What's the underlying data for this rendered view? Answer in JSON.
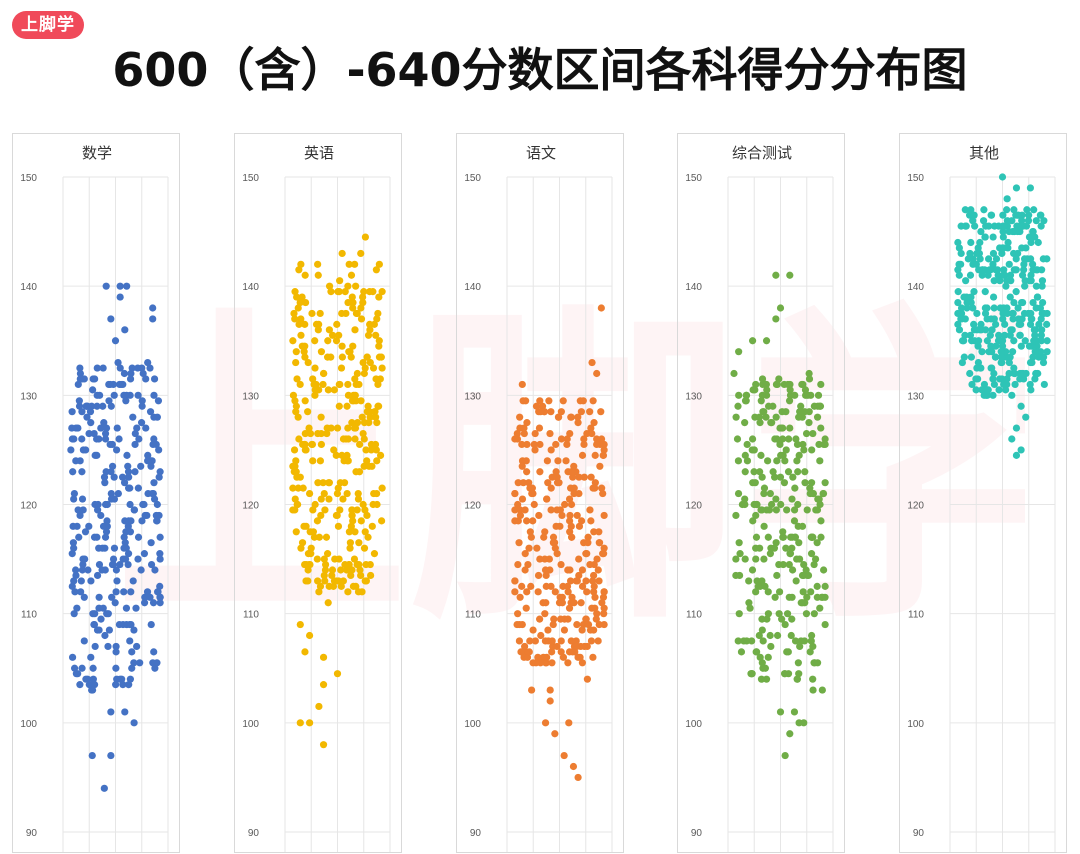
{
  "brand": {
    "badge_text": "上脚学",
    "watermark_text": "上脚学",
    "badge_color": "#f04a5a"
  },
  "title": "600（含）-640分数区间各科得分分布图",
  "chart_data": [
    {
      "type": "scatter",
      "title": "数学",
      "color": "#4472c4",
      "ylim": [
        90,
        150
      ],
      "yticks": [
        90,
        100,
        110,
        120,
        130,
        140,
        150
      ],
      "grid": true,
      "xlabel": "",
      "ylabel": "",
      "seed": 11,
      "distribution_center": 118,
      "points": [
        [
          0.4,
          140
        ],
        [
          0.55,
          140
        ],
        [
          0.62,
          140
        ],
        [
          0.45,
          137
        ],
        [
          0.9,
          138
        ],
        [
          0.9,
          137
        ],
        [
          0.5,
          135
        ],
        [
          0.6,
          136
        ],
        [
          0.1,
          131
        ],
        [
          0.2,
          129
        ],
        [
          0.55,
          139
        ],
        [
          0.2,
          104
        ],
        [
          0.25,
          97
        ],
        [
          0.45,
          97
        ],
        [
          0.38,
          94
        ],
        [
          0.45,
          101
        ],
        [
          0.6,
          101
        ],
        [
          0.7,
          100
        ],
        [
          0.95,
          128
        ],
        [
          0.05,
          116
        ],
        [
          0.95,
          120
        ]
      ],
      "dense_band": [
        103,
        133
      ],
      "dense_count": 300
    },
    {
      "type": "scatter",
      "title": "英语",
      "color": "#f2b800",
      "ylim": [
        90,
        150
      ],
      "yticks": [
        90,
        100,
        110,
        120,
        130,
        140,
        150
      ],
      "grid": true,
      "xlabel": "",
      "ylabel": "",
      "seed": 23,
      "distribution_center": 130,
      "points": [
        [
          0.8,
          144.5
        ],
        [
          0.75,
          143
        ],
        [
          0.55,
          143
        ],
        [
          0.95,
          142
        ],
        [
          0.35,
          132
        ],
        [
          0.2,
          121
        ],
        [
          0.1,
          109
        ],
        [
          0.2,
          108
        ],
        [
          0.35,
          106
        ],
        [
          0.15,
          106.5
        ],
        [
          0.35,
          103.5
        ],
        [
          0.3,
          101.5
        ],
        [
          0.1,
          100
        ],
        [
          0.2,
          100
        ],
        [
          0.35,
          98
        ],
        [
          0.5,
          104.5
        ],
        [
          0.3,
          112
        ],
        [
          0.4,
          111
        ]
      ],
      "dense_band": [
        112,
        142
      ],
      "dense_count": 330
    },
    {
      "type": "scatter",
      "title": "语文",
      "color": "#ed7d31",
      "ylim": [
        90,
        150
      ],
      "yticks": [
        90,
        100,
        110,
        120,
        130,
        140,
        150
      ],
      "grid": true,
      "xlabel": "",
      "ylabel": "",
      "seed": 37,
      "distribution_center": 118,
      "points": [
        [
          0.95,
          138
        ],
        [
          0.85,
          133
        ],
        [
          0.9,
          132
        ],
        [
          0.1,
          131
        ],
        [
          0.05,
          120
        ],
        [
          0.08,
          119
        ],
        [
          0.05,
          110
        ],
        [
          0.1,
          109
        ],
        [
          0.2,
          103
        ],
        [
          0.4,
          103
        ],
        [
          0.35,
          100
        ],
        [
          0.6,
          100
        ],
        [
          0.45,
          99
        ],
        [
          0.55,
          97
        ],
        [
          0.65,
          96
        ],
        [
          0.7,
          95
        ],
        [
          0.8,
          104
        ],
        [
          0.4,
          102
        ]
      ],
      "dense_band": [
        105,
        130
      ],
      "dense_count": 300
    },
    {
      "type": "scatter",
      "title": "综合测试",
      "color": "#70ad47",
      "ylim": [
        90,
        150
      ],
      "yticks": [
        90,
        100,
        110,
        120,
        130,
        140,
        150
      ],
      "grid": true,
      "xlabel": "",
      "ylabel": "",
      "seed": 49,
      "distribution_center": 119,
      "points": [
        [
          0.45,
          141
        ],
        [
          0.6,
          141
        ],
        [
          0.5,
          138
        ],
        [
          0.45,
          137
        ],
        [
          0.05,
          134
        ],
        [
          0.2,
          135
        ],
        [
          0.35,
          135
        ],
        [
          0.0,
          132
        ],
        [
          0.35,
          130
        ],
        [
          0.5,
          101
        ],
        [
          0.65,
          101
        ],
        [
          0.6,
          99
        ],
        [
          0.7,
          100
        ],
        [
          0.75,
          100
        ],
        [
          0.55,
          97
        ],
        [
          0.85,
          103
        ],
        [
          0.95,
          103
        ],
        [
          0.35,
          104
        ],
        [
          0.2,
          126
        ]
      ],
      "dense_band": [
        104,
        132
      ],
      "dense_count": 300
    },
    {
      "type": "scatter",
      "title": "其他",
      "color": "#2ec4b6",
      "ylim": [
        90,
        150
      ],
      "yticks": [
        90,
        100,
        110,
        120,
        130,
        140,
        150
      ],
      "grid": true,
      "xlabel": "",
      "ylabel": "",
      "seed": 61,
      "distribution_center": 140,
      "points": [
        [
          0.5,
          150
        ],
        [
          0.65,
          149
        ],
        [
          0.8,
          149
        ],
        [
          0.3,
          147
        ],
        [
          0.55,
          148
        ],
        [
          0.05,
          142
        ],
        [
          0.15,
          143
        ],
        [
          0.1,
          137
        ],
        [
          0.2,
          135
        ],
        [
          0.6,
          130
        ],
        [
          0.7,
          129
        ],
        [
          0.65,
          127
        ],
        [
          0.75,
          128
        ],
        [
          0.6,
          126
        ],
        [
          0.7,
          125
        ],
        [
          0.65,
          124.5
        ],
        [
          0.95,
          131
        ]
      ],
      "dense_band": [
        130,
        147
      ],
      "dense_count": 330
    }
  ]
}
